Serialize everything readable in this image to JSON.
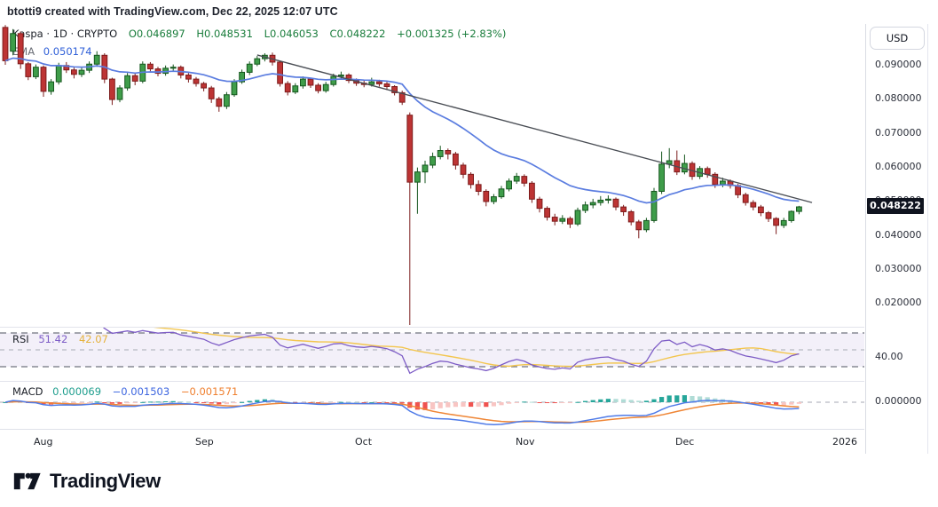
{
  "header": {
    "attribution": "btotti9 created with TradingView.com, Dec 22, 2025 12:07 UTC"
  },
  "legend": {
    "symbol": "Kaspa · 1D · CRYPTO",
    "o": "O0.046897",
    "h": "H0.048531",
    "l": "L0.046053",
    "c": "C0.048222",
    "change": "+0.001325 (+2.83%)",
    "ema_label": "EMA",
    "ema_value": "0.050174"
  },
  "rsi_legend": {
    "label": "RSI",
    "value": "51.42",
    "signal": "42.07"
  },
  "macd_legend": {
    "label": "MACD",
    "hist": "0.000069",
    "macd": "−0.001503",
    "signal": "−0.001571"
  },
  "price_axis": {
    "currency": "USD",
    "labels": [
      "0.090000",
      "0.080000",
      "0.070000",
      "0.060000",
      "0.050000",
      "0.040000",
      "0.030000",
      "0.020000"
    ],
    "last_price": "0.048222"
  },
  "rsi_axis": {
    "label": "40.00"
  },
  "macd_axis": {
    "label": "0.000000"
  },
  "time_axis": {
    "labels": [
      "Aug",
      "Sep",
      "Oct",
      "Nov",
      "Dec",
      "2026"
    ]
  },
  "footer": {
    "brand": "TradingView"
  },
  "chart_data": {
    "type": "candlestick",
    "symbol": "Kaspa",
    "interval": "1D",
    "exchange": "CRYPTO",
    "last_ohlc": {
      "open": 0.046897,
      "high": 0.048531,
      "low": 0.046053,
      "close": 0.048222,
      "change": 0.001325,
      "change_pct": 2.83
    },
    "price_ticks": [
      0.09,
      0.08,
      0.07,
      0.06,
      0.05,
      0.04,
      0.03,
      0.02
    ],
    "price_axis_range": [
      0.0135,
      0.1017
    ],
    "x_months": [
      "Aug",
      "Sep",
      "Oct",
      "Nov",
      "Dec",
      "2026"
    ],
    "candles": [
      [
        0.101,
        0.1017,
        0.09,
        0.0912
      ],
      [
        0.094,
        0.1005,
        0.0928,
        0.0992
      ],
      [
        0.0992,
        0.0998,
        0.0888,
        0.0903
      ],
      [
        0.0903,
        0.0908,
        0.0855,
        0.0865
      ],
      [
        0.0865,
        0.0901,
        0.0858,
        0.0893
      ],
      [
        0.0893,
        0.0898,
        0.0806,
        0.0822
      ],
      [
        0.0822,
        0.0858,
        0.0812,
        0.085
      ],
      [
        0.085,
        0.0906,
        0.0842,
        0.0898
      ],
      [
        0.0898,
        0.0908,
        0.0876,
        0.0885
      ],
      [
        0.0885,
        0.0893,
        0.086,
        0.0872
      ],
      [
        0.0872,
        0.0892,
        0.0864,
        0.0884
      ],
      [
        0.0884,
        0.091,
        0.0876,
        0.0902
      ],
      [
        0.0902,
        0.094,
        0.0894,
        0.0928
      ],
      [
        0.0928,
        0.0934,
        0.0846,
        0.0858
      ],
      [
        0.0858,
        0.0862,
        0.0782,
        0.0798
      ],
      [
        0.0798,
        0.084,
        0.079,
        0.0832
      ],
      [
        0.0832,
        0.0876,
        0.0824,
        0.0868
      ],
      [
        0.0868,
        0.0874,
        0.084,
        0.0852
      ],
      [
        0.0852,
        0.091,
        0.0846,
        0.0902
      ],
      [
        0.0902,
        0.0908,
        0.0878,
        0.0888
      ],
      [
        0.0888,
        0.0894,
        0.0866,
        0.0875
      ],
      [
        0.0875,
        0.0898,
        0.0868,
        0.089
      ],
      [
        0.089,
        0.0901,
        0.088,
        0.0893
      ],
      [
        0.0893,
        0.0898,
        0.086,
        0.087
      ],
      [
        0.087,
        0.0876,
        0.0848,
        0.0858
      ],
      [
        0.0858,
        0.0864,
        0.0836,
        0.0845
      ],
      [
        0.0845,
        0.085,
        0.0822,
        0.0832
      ],
      [
        0.0832,
        0.0838,
        0.0788,
        0.08
      ],
      [
        0.08,
        0.0806,
        0.0762,
        0.0778
      ],
      [
        0.0778,
        0.082,
        0.077,
        0.0812
      ],
      [
        0.0812,
        0.0858,
        0.0806,
        0.085
      ],
      [
        0.085,
        0.0886,
        0.0844,
        0.0878
      ],
      [
        0.0878,
        0.091,
        0.087,
        0.0902
      ],
      [
        0.0902,
        0.0926,
        0.0896,
        0.0918
      ],
      [
        0.0918,
        0.0934,
        0.091,
        0.0928
      ],
      [
        0.0928,
        0.0936,
        0.0898,
        0.0908
      ],
      [
        0.0908,
        0.0912,
        0.0836,
        0.0845
      ],
      [
        0.0845,
        0.0852,
        0.081,
        0.082
      ],
      [
        0.082,
        0.0846,
        0.0814,
        0.0838
      ],
      [
        0.0838,
        0.0866,
        0.083,
        0.0858
      ],
      [
        0.0858,
        0.0862,
        0.0832,
        0.084
      ],
      [
        0.084,
        0.0846,
        0.0816,
        0.0824
      ],
      [
        0.0824,
        0.085,
        0.0818,
        0.0842
      ],
      [
        0.0842,
        0.0874,
        0.0836,
        0.0866
      ],
      [
        0.0866,
        0.088,
        0.0858,
        0.087
      ],
      [
        0.087,
        0.0875,
        0.0846,
        0.0854
      ],
      [
        0.0854,
        0.086,
        0.0838,
        0.0846
      ],
      [
        0.0846,
        0.0856,
        0.0834,
        0.0842
      ],
      [
        0.0842,
        0.0862,
        0.0836,
        0.085
      ],
      [
        0.085,
        0.0856,
        0.0836,
        0.0844
      ],
      [
        0.0844,
        0.085,
        0.0826,
        0.0836
      ],
      [
        0.0836,
        0.084,
        0.081,
        0.0818
      ],
      [
        0.0818,
        0.0824,
        0.0782,
        0.079
      ],
      [
        0.0752,
        0.076,
        0.0135,
        0.0555
      ],
      [
        0.0555,
        0.0598,
        0.0462,
        0.0585
      ],
      [
        0.0585,
        0.0618,
        0.0552,
        0.0605
      ],
      [
        0.0605,
        0.0642,
        0.0596,
        0.063
      ],
      [
        0.063,
        0.0662,
        0.0622,
        0.0648
      ],
      [
        0.0648,
        0.0654,
        0.0622,
        0.0638
      ],
      [
        0.0638,
        0.0644,
        0.0592,
        0.0605
      ],
      [
        0.0605,
        0.0612,
        0.0566,
        0.0578
      ],
      [
        0.0578,
        0.0584,
        0.0536,
        0.0548
      ],
      [
        0.0548,
        0.056,
        0.0516,
        0.0528
      ],
      [
        0.0528,
        0.0534,
        0.0484,
        0.0498
      ],
      [
        0.0498,
        0.052,
        0.049,
        0.0512
      ],
      [
        0.0512,
        0.0544,
        0.0506,
        0.0535
      ],
      [
        0.0535,
        0.0566,
        0.0528,
        0.0558
      ],
      [
        0.0558,
        0.0582,
        0.055,
        0.0572
      ],
      [
        0.0572,
        0.0578,
        0.0542,
        0.0552
      ],
      [
        0.0552,
        0.0558,
        0.0494,
        0.0505
      ],
      [
        0.0505,
        0.0512,
        0.0466,
        0.0478
      ],
      [
        0.0478,
        0.0484,
        0.0442,
        0.0452
      ],
      [
        0.0452,
        0.0462,
        0.0428,
        0.044
      ],
      [
        0.044,
        0.0458,
        0.0432,
        0.0448
      ],
      [
        0.0448,
        0.0454,
        0.042,
        0.0432
      ],
      [
        0.0432,
        0.048,
        0.0426,
        0.0472
      ],
      [
        0.0472,
        0.0498,
        0.0464,
        0.0488
      ],
      [
        0.0488,
        0.0506,
        0.0478,
        0.0495
      ],
      [
        0.0495,
        0.0514,
        0.0486,
        0.0502
      ],
      [
        0.0502,
        0.0516,
        0.0492,
        0.0505
      ],
      [
        0.0505,
        0.051,
        0.0472,
        0.0482
      ],
      [
        0.0482,
        0.0488,
        0.0456,
        0.0468
      ],
      [
        0.0468,
        0.0473,
        0.0428,
        0.0438
      ],
      [
        0.0438,
        0.0444,
        0.039,
        0.0415
      ],
      [
        0.0415,
        0.045,
        0.0408,
        0.0442
      ],
      [
        0.0442,
        0.0538,
        0.0436,
        0.0528
      ],
      [
        0.0528,
        0.0645,
        0.052,
        0.0608
      ],
      [
        0.0608,
        0.0655,
        0.0596,
        0.0618
      ],
      [
        0.0618,
        0.0648,
        0.0576,
        0.0585
      ],
      [
        0.0585,
        0.0636,
        0.0578,
        0.061
      ],
      [
        0.061,
        0.0616,
        0.0562,
        0.0572
      ],
      [
        0.0572,
        0.0602,
        0.0564,
        0.0595
      ],
      [
        0.0595,
        0.0601,
        0.0568,
        0.0578
      ],
      [
        0.0578,
        0.0584,
        0.0538,
        0.0548
      ],
      [
        0.0548,
        0.0568,
        0.054,
        0.0558
      ],
      [
        0.0558,
        0.0563,
        0.0536,
        0.0545
      ],
      [
        0.0545,
        0.055,
        0.0508,
        0.0518
      ],
      [
        0.0518,
        0.0524,
        0.0486,
        0.0495
      ],
      [
        0.0495,
        0.0502,
        0.0472,
        0.0482
      ],
      [
        0.0482,
        0.0488,
        0.0455,
        0.0465
      ],
      [
        0.0465,
        0.047,
        0.0438,
        0.0448
      ],
      [
        0.0448,
        0.0452,
        0.0402,
        0.0428
      ],
      [
        0.0428,
        0.045,
        0.042,
        0.0442
      ],
      [
        0.0442,
        0.0472,
        0.0436,
        0.0469
      ],
      [
        0.046897,
        0.048531,
        0.046053,
        0.048222
      ]
    ],
    "overlays": {
      "ema": {
        "period": 20,
        "last_value": 0.050174
      },
      "trendline": {
        "start_index": 33,
        "start_price": 0.0929,
        "end_index": 105.7,
        "end_price": 0.0495
      }
    },
    "rsi": {
      "period": 14,
      "last": 51.42,
      "signal_last": 42.07,
      "levels": [
        70,
        50,
        30
      ],
      "visible_tick": 40.0
    },
    "macd": {
      "fast": 12,
      "slow": 26,
      "signal": 9,
      "hist_last": 6.9e-05,
      "macd_last": -0.001503,
      "signal_last": -0.001571,
      "visible_tick": 0.0
    },
    "colors": {
      "up": "#3f9d4a",
      "up_border": "#17571f",
      "down": "#bd3434",
      "down_border": "#7c1c1c",
      "ema": "#5b7de0",
      "trendline": "#4a4e55",
      "rsi": "#7d5cc6",
      "rsi_signal": "#f3c64f",
      "rsi_band": "rgba(126,87,194,0.09)",
      "macd_line": "#4f7be8",
      "macd_signal": "#ef8636",
      "hist_up": "#26a69a",
      "hist_up_weak": "#b0dcd6",
      "hist_down": "#ef5350",
      "hist_down_weak": "#f8c5c3",
      "badge_bg": "#10141f",
      "level_dash": "#70747f",
      "mid_dash": "#b6b9c2"
    }
  }
}
